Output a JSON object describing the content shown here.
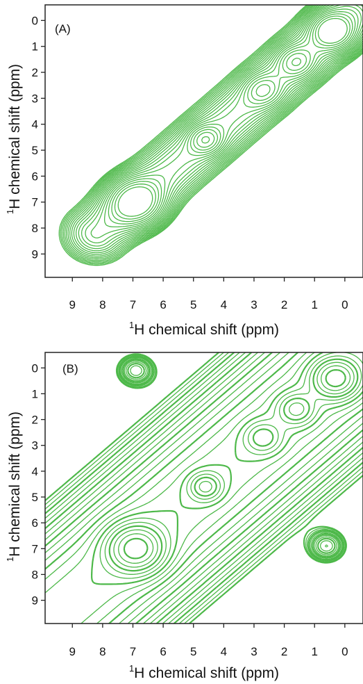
{
  "chart_data": [
    {
      "type": "contour",
      "panel_label": "(A)",
      "xlabel": "1H chemical shift (ppm)",
      "ylabel": "1H chemical shift (ppm)",
      "xlabel_parts": {
        "sup": "1",
        "text": "H chemical shift (ppm)"
      },
      "ylabel_parts": {
        "sup": "1",
        "text": "H chemical shift (ppm)"
      },
      "xlim": [
        9.9,
        -0.6
      ],
      "ylim": [
        -0.6,
        9.9
      ],
      "x_reversed": true,
      "xticks": [
        9,
        8,
        7,
        6,
        5,
        4,
        3,
        2,
        1,
        0
      ],
      "yticks": [
        0,
        1,
        2,
        3,
        4,
        5,
        6,
        7,
        8,
        9
      ],
      "line_color": "#4cb848",
      "levels": 20,
      "peaks": [
        {
          "x": 0.4,
          "y": 0.4,
          "intensity": 1.0,
          "width": 0.45
        },
        {
          "x": 1.6,
          "y": 1.6,
          "intensity": 0.55,
          "width": 0.4
        },
        {
          "x": 2.7,
          "y": 2.7,
          "intensity": 0.45,
          "width": 0.4
        },
        {
          "x": 4.6,
          "y": 4.6,
          "intensity": 0.55,
          "width": 0.35
        },
        {
          "x": 6.9,
          "y": 7.0,
          "intensity": 1.0,
          "width": 0.55
        }
      ],
      "diagonal_ridge": {
        "from": -0.2,
        "to": 8.2,
        "intensity": 0.5,
        "width": 0.6
      }
    },
    {
      "type": "contour",
      "panel_label": "(B)",
      "xlabel": "1H chemical shift (ppm)",
      "ylabel": "1H chemical shift (ppm)",
      "xlabel_parts": {
        "sup": "1",
        "text": "H chemical shift (ppm)"
      },
      "ylabel_parts": {
        "sup": "1",
        "text": "H chemical shift (ppm)"
      },
      "xlim": [
        9.9,
        -0.6
      ],
      "ylim": [
        -0.6,
        9.9
      ],
      "x_reversed": true,
      "xticks": [
        9,
        8,
        7,
        6,
        5,
        4,
        3,
        2,
        1,
        0
      ],
      "yticks": [
        0,
        1,
        2,
        3,
        4,
        5,
        6,
        7,
        8,
        9
      ],
      "line_color": "#4cb848",
      "levels": 26,
      "peaks": [
        {
          "x": 0.3,
          "y": 0.4,
          "intensity": 1.0,
          "width": 0.5
        },
        {
          "x": 1.6,
          "y": 1.6,
          "intensity": 0.55,
          "width": 0.4
        },
        {
          "x": 2.7,
          "y": 2.7,
          "intensity": 0.45,
          "width": 0.4
        },
        {
          "x": 4.6,
          "y": 4.6,
          "intensity": 0.55,
          "width": 0.35
        },
        {
          "x": 6.9,
          "y": 7.0,
          "intensity": 1.0,
          "width": 0.6
        },
        {
          "x": 6.9,
          "y": 0.1,
          "intensity": 0.3,
          "width": 0.35
        },
        {
          "x": 0.6,
          "y": 6.9,
          "intensity": 0.3,
          "width": 0.35
        }
      ],
      "diagonal_ridge": {
        "from": -0.3,
        "to": 9.5,
        "intensity": 0.55,
        "width": 1.6
      }
    }
  ]
}
